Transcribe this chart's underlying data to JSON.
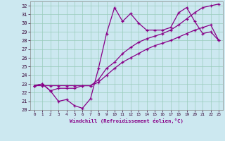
{
  "xlabel": "Windchill (Refroidissement éolien,°C)",
  "xlim": [
    -0.5,
    23.5
  ],
  "ylim": [
    20,
    32.5
  ],
  "xticks": [
    0,
    1,
    2,
    3,
    4,
    5,
    6,
    7,
    8,
    9,
    10,
    11,
    12,
    13,
    14,
    15,
    16,
    17,
    18,
    19,
    20,
    21,
    22,
    23
  ],
  "yticks": [
    20,
    21,
    22,
    23,
    24,
    25,
    26,
    27,
    28,
    29,
    30,
    31,
    32
  ],
  "bg_color": "#cce8f0",
  "line_color": "#880088",
  "grid_color": "#99ccbb",
  "series": [
    [
      22.8,
      23.0,
      22.2,
      21.0,
      21.2,
      20.5,
      20.2,
      21.3,
      24.8,
      28.8,
      31.8,
      30.2,
      31.1,
      30.0,
      29.2,
      29.2,
      29.2,
      29.5,
      31.2,
      31.8,
      30.2,
      28.8,
      29.0,
      28.0
    ],
    [
      22.8,
      23.0,
      22.2,
      22.5,
      22.5,
      22.5,
      22.8,
      22.8,
      23.5,
      24.8,
      25.5,
      26.5,
      27.2,
      27.8,
      28.2,
      28.5,
      28.8,
      29.2,
      29.8,
      30.5,
      31.2,
      31.8,
      32.0,
      32.2
    ],
    [
      22.8,
      22.8,
      22.8,
      22.8,
      22.8,
      22.8,
      22.8,
      22.8,
      23.2,
      24.0,
      24.8,
      25.5,
      26.0,
      26.5,
      27.0,
      27.4,
      27.7,
      28.0,
      28.4,
      28.8,
      29.2,
      29.5,
      29.8,
      28.0
    ]
  ]
}
